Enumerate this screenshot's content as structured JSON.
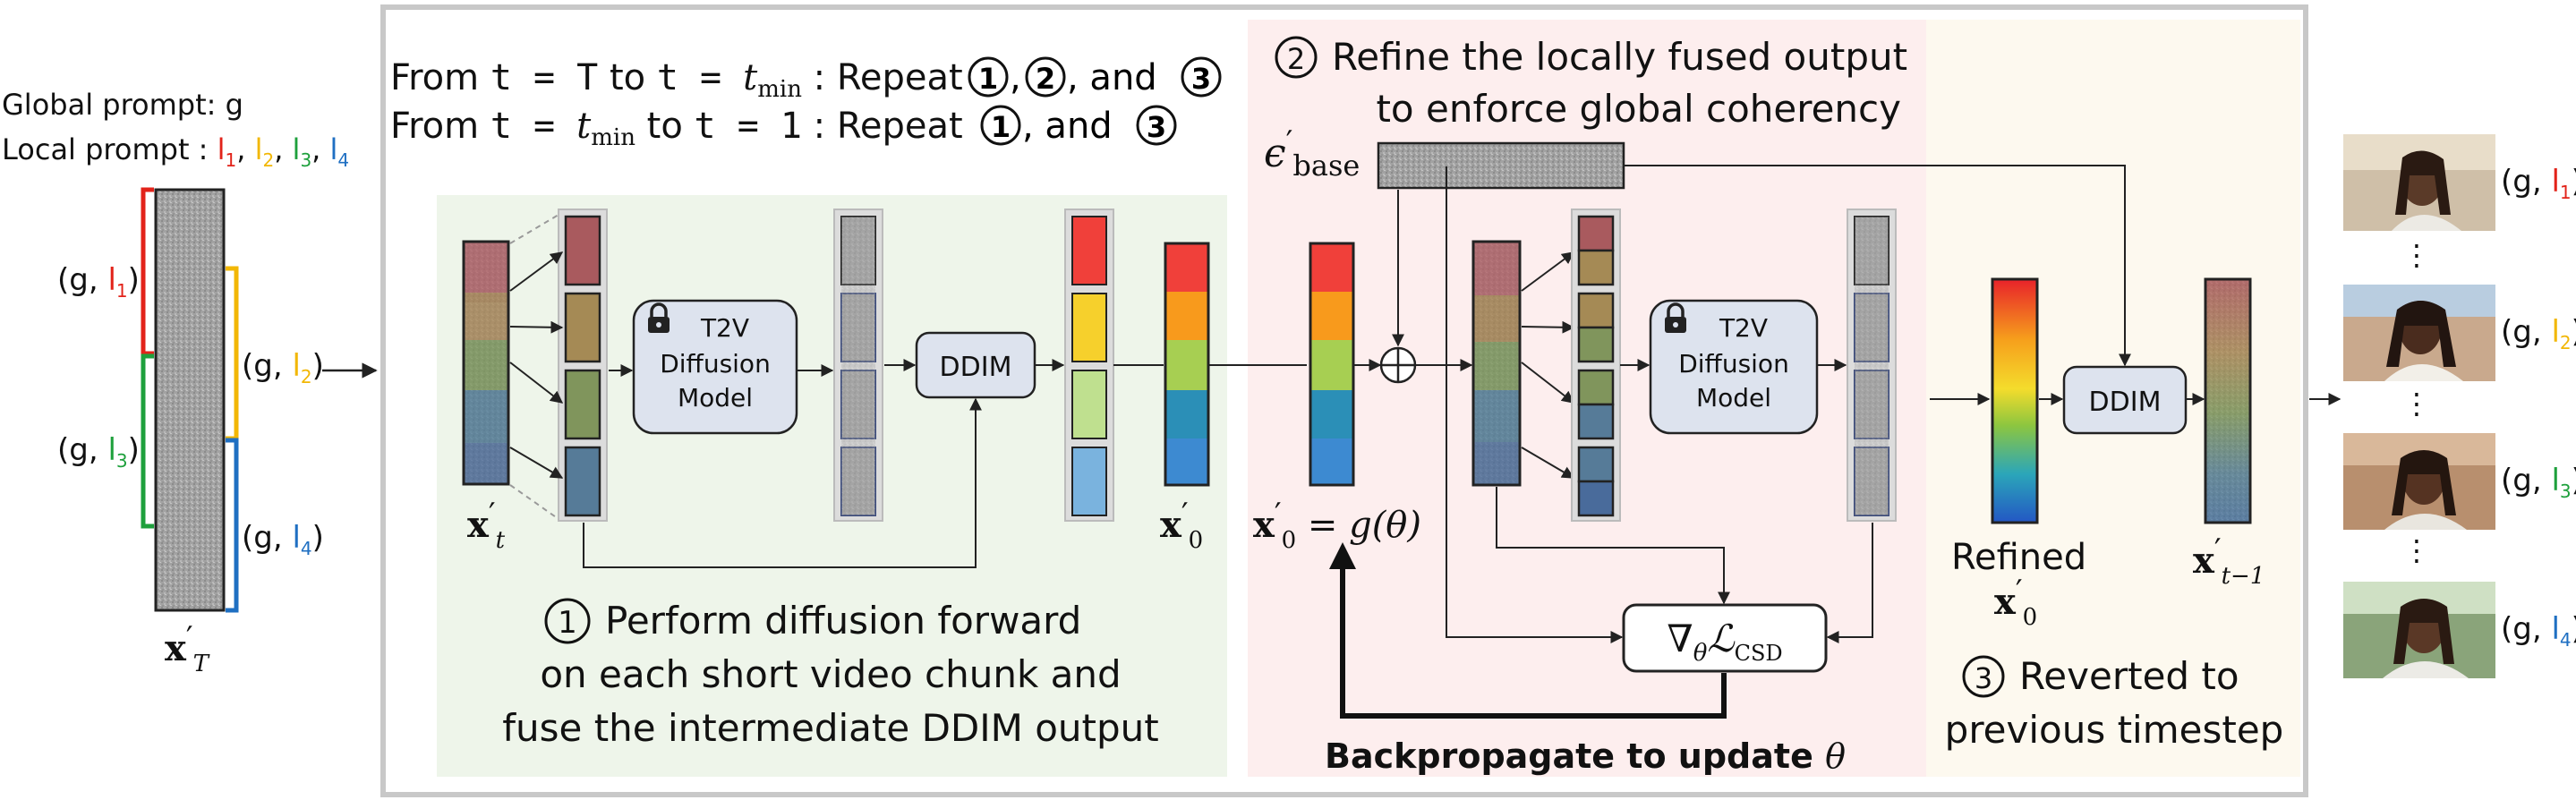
{
  "colors": {
    "green_panel": "#eef5ea",
    "pink_panel": "#fdeeee",
    "cream_panel": "#fdf9ef",
    "outer_border": "#c8c8c8",
    "box_fill": "#dde3ee",
    "red": "#e2231a",
    "yellow": "#f2b705",
    "green": "#1ea03c",
    "blue": "#1f6fc2",
    "chunk_red": "#f0403a",
    "chunk_orange": "#f89a1c",
    "chunk_yellow": "#f6d02c",
    "chunk_green": "#a7cf52",
    "chunk_teal": "#2b8fb7",
    "chunk_blue": "#3d8ad1"
  },
  "prompts": {
    "global_label": "Global prompt: g",
    "local_label": "Local prompt : ",
    "l1": "l",
    "s1": "1",
    "l2": "l",
    "s2": "2",
    "l3": "l",
    "s3": "3",
    "l4": "l",
    "s4": "4",
    "sep": ", "
  },
  "brackets": {
    "b1_open": "(g, ",
    "b1_l": "l",
    "b1_s": "1",
    "b1_close": ")",
    "b2_open": "(g, ",
    "b2_l": "l",
    "b2_s": "2",
    "b2_close": ")",
    "b3_open": "(g, ",
    "b3_l": "l",
    "b3_s": "3",
    "b3_close": ")",
    "b4_open": "(g, ",
    "b4_l": "l",
    "b4_s": "4",
    "b4_close": ")"
  },
  "latent_labels": {
    "xT_main": "x",
    "xT_prime": "′",
    "xT_sub": "T",
    "xt_main": "x",
    "xt_prime": "′",
    "xt_sub": "t",
    "x0_main": "x",
    "x0_prime": "′",
    "x0_sub": "0",
    "x0g_main": "x",
    "x0g_prime": "′",
    "x0g_sub": "0",
    "x0g_eq": " = g(θ)",
    "refined": "Refined",
    "ref_main": "x",
    "ref_prime": "′",
    "ref_sub": "0",
    "xtm1_main": "x",
    "xtm1_prime": "′",
    "xtm1_sub": "t−1",
    "eps_main": "ϵ",
    "eps_prime": "′",
    "eps_sub": "base"
  },
  "schedule": {
    "line1_a": "From ",
    "line1_b": "t = T",
    "line1_c": " to ",
    "line1_d": "t = ",
    "line1_e": "t",
    "line1_f": "min",
    "line1_g": " : Repeat ",
    "line2_a": "From ",
    "line2_b": "t = ",
    "line2_c": "t",
    "line2_d": "min",
    "line2_e": " to ",
    "line2_f": "t = 1",
    "line2_g": " : Repeat ",
    "c1": "1",
    "c2": "2",
    "c3": "3",
    "comma": ",",
    "and": ", and"
  },
  "boxes": {
    "t2v_line1": "T2V",
    "t2v_line2": "Diffusion",
    "t2v_line3": "Model",
    "ddim": "DDIM",
    "loss_nabla": "∇",
    "loss_theta": "θ",
    "loss_L": "ℒ",
    "loss_sub": "CSD"
  },
  "steps": {
    "s1_num": "1",
    "s1_line1": "Perform diffusion forward",
    "s1_line2": "on each short video chunk and",
    "s1_line3": "fuse the intermediate DDIM output",
    "s2_num": "2",
    "s2_line1": "Refine the locally fused output",
    "s2_line2": "to enforce global coherency",
    "s3_num": "3",
    "s3_line1": "Reverted to",
    "s3_line2": "previous timestep",
    "backprop": "Backpropagate to update ",
    "backprop_theta": "θ"
  },
  "outputs": {
    "o1_open": "(g, ",
    "o1_l": "l",
    "o1_s": "1",
    "o1_close": ")",
    "o2_open": "(g, ",
    "o2_l": "l",
    "o2_s": "2",
    "o2_close": ")",
    "o3_open": "(g, ",
    "o3_l": "l",
    "o3_s": "3",
    "o3_close": ")",
    "o4_open": "(g, ",
    "o4_l": "l",
    "o4_s": "4",
    "o4_close": ")",
    "dots": "⋮"
  }
}
